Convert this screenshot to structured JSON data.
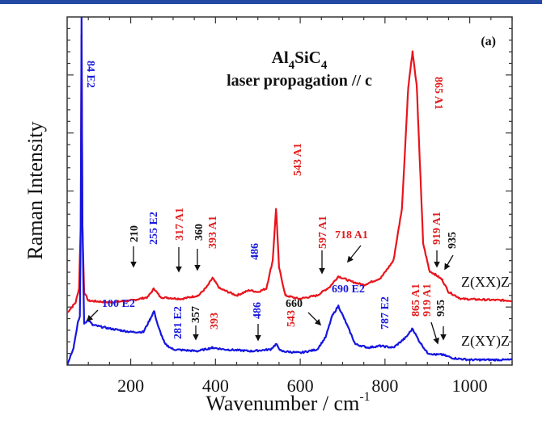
{
  "header_bar_color": "#2449a3",
  "chart_data": {
    "type": "line",
    "title": "Al4SiC4",
    "title_parts": {
      "base1": "Al",
      "sub1": "4",
      "base2": "SiC",
      "sub2": "4"
    },
    "subtitle": "laser propagation // c",
    "panel_label": "(a)",
    "xlabel": "Wavenumber / cm",
    "xlabel_sup": "-1",
    "ylabel": "Raman Intensity",
    "xlim": [
      50,
      1100
    ],
    "ylim": [
      0,
      100
    ],
    "x_ticks": [
      200,
      400,
      600,
      800,
      1000
    ],
    "x_tick_labels": [
      "200",
      "400",
      "600",
      "800",
      "1000"
    ],
    "y_tick_labels_shown": false,
    "grid": false,
    "legend": "none",
    "colors": {
      "zxx": "#e8141c",
      "zxy": "#1515e0",
      "annot_black": "#111111"
    },
    "series": [
      {
        "name": "Z(XX)Z",
        "color": "#e8141c",
        "points": [
          [
            50,
            15
          ],
          [
            70,
            18
          ],
          [
            78,
            22
          ],
          [
            82,
            40
          ],
          [
            84,
            95
          ],
          [
            86,
            40
          ],
          [
            90,
            21
          ],
          [
            100,
            18.5
          ],
          [
            150,
            18
          ],
          [
            200,
            18.5
          ],
          [
            240,
            19.5
          ],
          [
            255,
            22
          ],
          [
            270,
            19.5
          ],
          [
            320,
            19
          ],
          [
            360,
            20
          ],
          [
            380,
            22.5
          ],
          [
            393,
            25
          ],
          [
            410,
            22
          ],
          [
            450,
            20
          ],
          [
            480,
            21.5
          ],
          [
            500,
            21
          ],
          [
            520,
            22
          ],
          [
            535,
            30
          ],
          [
            543,
            45
          ],
          [
            550,
            28
          ],
          [
            565,
            20
          ],
          [
            597,
            19
          ],
          [
            640,
            20
          ],
          [
            670,
            22.5
          ],
          [
            690,
            25.5
          ],
          [
            720,
            24
          ],
          [
            750,
            23
          ],
          [
            790,
            25
          ],
          [
            820,
            30
          ],
          [
            840,
            45
          ],
          [
            855,
            80
          ],
          [
            865,
            90
          ],
          [
            875,
            80
          ],
          [
            890,
            35
          ],
          [
            905,
            27
          ],
          [
            919,
            26
          ],
          [
            935,
            24.5
          ],
          [
            950,
            21
          ],
          [
            980,
            19
          ],
          [
            1100,
            18.5
          ]
        ]
      },
      {
        "name": "Z(XY)Z",
        "color": "#1515e0",
        "points": [
          [
            50,
            0
          ],
          [
            65,
            5
          ],
          [
            75,
            12
          ],
          [
            80,
            14
          ],
          [
            82,
            40
          ],
          [
            84,
            100
          ],
          [
            86,
            40
          ],
          [
            90,
            12
          ],
          [
            100,
            13
          ],
          [
            110,
            11.5
          ],
          [
            150,
            10.5
          ],
          [
            200,
            9.5
          ],
          [
            230,
            9.5
          ],
          [
            245,
            13
          ],
          [
            255,
            15.5
          ],
          [
            265,
            11
          ],
          [
            281,
            6
          ],
          [
            300,
            4.5
          ],
          [
            357,
            4
          ],
          [
            393,
            5
          ],
          [
            420,
            4.5
          ],
          [
            486,
            4
          ],
          [
            530,
            4.5
          ],
          [
            543,
            6
          ],
          [
            555,
            4
          ],
          [
            600,
            3.5
          ],
          [
            640,
            4.5
          ],
          [
            660,
            8
          ],
          [
            675,
            14
          ],
          [
            690,
            17
          ],
          [
            705,
            13
          ],
          [
            730,
            6
          ],
          [
            760,
            5
          ],
          [
            787,
            5.5
          ],
          [
            820,
            5
          ],
          [
            850,
            8
          ],
          [
            865,
            10.5
          ],
          [
            880,
            7
          ],
          [
            900,
            3.5
          ],
          [
            919,
            3
          ],
          [
            935,
            3
          ],
          [
            960,
            2
          ],
          [
            1000,
            1.5
          ],
          [
            1100,
            1.5
          ]
        ]
      }
    ],
    "series_labels": [
      {
        "text": "Z(XX)Z",
        "series": "Z(XX)Z"
      },
      {
        "text": "Z(XY)Z",
        "series": "Z(XY)Z"
      }
    ],
    "annotations": [
      {
        "text": "84 E2",
        "x": 84,
        "color": "blue",
        "rotated": true,
        "arrow": false
      },
      {
        "text": "210",
        "x": 210,
        "color": "black",
        "rotated": true,
        "arrow": true,
        "series": "Z(XX)Z"
      },
      {
        "text": "255 E2",
        "x": 255,
        "color": "blue",
        "rotated": true,
        "arrow": false,
        "series": "Z(XX)Z"
      },
      {
        "text": "317 A1",
        "x": 317,
        "color": "red",
        "rotated": true,
        "arrow": true,
        "series": "Z(XX)Z"
      },
      {
        "text": "360",
        "x": 360,
        "color": "black",
        "rotated": true,
        "arrow": true,
        "series": "Z(XX)Z"
      },
      {
        "text": "393 A1",
        "x": 393,
        "color": "red",
        "rotated": true,
        "arrow": false,
        "series": "Z(XX)Z"
      },
      {
        "text": "486",
        "x": 486,
        "color": "blue",
        "rotated": true,
        "arrow": false,
        "series": "Z(XX)Z"
      },
      {
        "text": "543 A1",
        "x": 543,
        "color": "red",
        "rotated": true,
        "arrow": false,
        "series": "Z(XX)Z"
      },
      {
        "text": "597 A1",
        "x": 597,
        "color": "red",
        "rotated": true,
        "arrow": true,
        "series": "Z(XX)Z"
      },
      {
        "text": "718 A1",
        "x": 718,
        "color": "red",
        "rotated": false,
        "arrow": true,
        "series": "Z(XX)Z"
      },
      {
        "text": "865 A1",
        "x": 865,
        "color": "red",
        "rotated": true,
        "arrow": false,
        "series": "Z(XX)Z"
      },
      {
        "text": "919 A1",
        "x": 919,
        "color": "red",
        "rotated": true,
        "arrow": true,
        "series": "Z(XX)Z"
      },
      {
        "text": "935",
        "x": 935,
        "color": "black",
        "rotated": true,
        "arrow": true,
        "series": "Z(XX)Z"
      },
      {
        "text": "100 E2",
        "x": 100,
        "color": "blue",
        "rotated": false,
        "arrow": true,
        "series": "Z(XY)Z"
      },
      {
        "text": "281 E2",
        "x": 281,
        "color": "blue",
        "rotated": true,
        "arrow": false,
        "series": "Z(XY)Z"
      },
      {
        "text": "357",
        "x": 357,
        "color": "black",
        "rotated": true,
        "arrow": true,
        "series": "Z(XY)Z"
      },
      {
        "text": "393",
        "x": 393,
        "color": "red",
        "rotated": true,
        "arrow": false,
        "series": "Z(XY)Z"
      },
      {
        "text": "486",
        "x": 486,
        "color": "blue",
        "rotated": true,
        "arrow": true,
        "series": "Z(XY)Z"
      },
      {
        "text": "543",
        "x": 543,
        "color": "red",
        "rotated": true,
        "arrow": false,
        "series": "Z(XY)Z"
      },
      {
        "text": "660",
        "x": 660,
        "color": "black",
        "rotated": false,
        "arrow": true,
        "series": "Z(XY)Z"
      },
      {
        "text": "690 E2",
        "x": 690,
        "color": "blue",
        "rotated": false,
        "arrow": false,
        "series": "Z(XY)Z"
      },
      {
        "text": "787 E2",
        "x": 787,
        "color": "blue",
        "rotated": true,
        "arrow": false,
        "series": "Z(XY)Z"
      },
      {
        "text": "865 A1",
        "x": 865,
        "color": "red",
        "rotated": true,
        "arrow": false,
        "series": "Z(XY)Z"
      },
      {
        "text": "919 A1",
        "x": 919,
        "color": "red",
        "rotated": true,
        "arrow": true,
        "series": "Z(XY)Z"
      },
      {
        "text": "935",
        "x": 935,
        "color": "black",
        "rotated": true,
        "arrow": true,
        "series": "Z(XY)Z"
      }
    ]
  }
}
